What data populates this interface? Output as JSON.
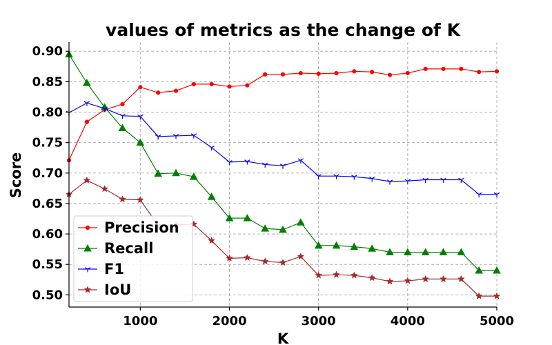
{
  "chart_data": {
    "type": "line",
    "title": "values of metrics as the change of K",
    "xlabel": "K",
    "ylabel": "Score",
    "xlim": [
      200,
      5000
    ],
    "ylim": [
      0.48,
      0.915
    ],
    "xticks": [
      1000,
      2000,
      3000,
      4000,
      5000
    ],
    "yticks": [
      0.5,
      0.55,
      0.6,
      0.65,
      0.7,
      0.75,
      0.8,
      0.85,
      0.9
    ],
    "grid": true,
    "legend_position": "lower-left",
    "x": [
      200,
      400,
      600,
      800,
      1000,
      1200,
      1400,
      1600,
      1800,
      2000,
      2200,
      2400,
      2600,
      2800,
      3000,
      3200,
      3400,
      3600,
      3800,
      4000,
      4200,
      4400,
      4600,
      4800,
      5000
    ],
    "series": [
      {
        "name": "Precision",
        "color": "#ff0000",
        "marker": "circle",
        "values": [
          0.721,
          0.784,
          0.804,
          0.813,
          0.841,
          0.832,
          0.835,
          0.846,
          0.846,
          0.842,
          0.844,
          0.862,
          0.862,
          0.864,
          0.863,
          0.864,
          0.867,
          0.866,
          0.861,
          0.864,
          0.871,
          0.871,
          0.871,
          0.866,
          0.867
        ]
      },
      {
        "name": "Recall",
        "color": "#008000",
        "marker": "triangle",
        "values": [
          0.895,
          0.848,
          0.808,
          0.774,
          0.75,
          0.699,
          0.7,
          0.694,
          0.661,
          0.626,
          0.626,
          0.609,
          0.607,
          0.619,
          0.581,
          0.581,
          0.579,
          0.576,
          0.57,
          0.57,
          0.57,
          0.57,
          0.57,
          0.54,
          0.54
        ]
      },
      {
        "name": "F1",
        "color": "#0000ff",
        "marker": "tri-down",
        "values": [
          0.799,
          0.815,
          0.806,
          0.794,
          0.793,
          0.76,
          0.761,
          0.762,
          0.742,
          0.718,
          0.719,
          0.714,
          0.712,
          0.721,
          0.695,
          0.695,
          0.694,
          0.691,
          0.686,
          0.687,
          0.689,
          0.689,
          0.689,
          0.665,
          0.665
        ]
      },
      {
        "name": "IoU",
        "color": "#a52a2a",
        "marker": "star",
        "values": [
          0.665,
          0.688,
          0.674,
          0.657,
          0.656,
          0.614,
          0.615,
          0.616,
          0.589,
          0.56,
          0.561,
          0.555,
          0.553,
          0.563,
          0.532,
          0.533,
          0.532,
          0.528,
          0.522,
          0.523,
          0.526,
          0.526,
          0.526,
          0.498,
          0.498
        ]
      }
    ]
  }
}
